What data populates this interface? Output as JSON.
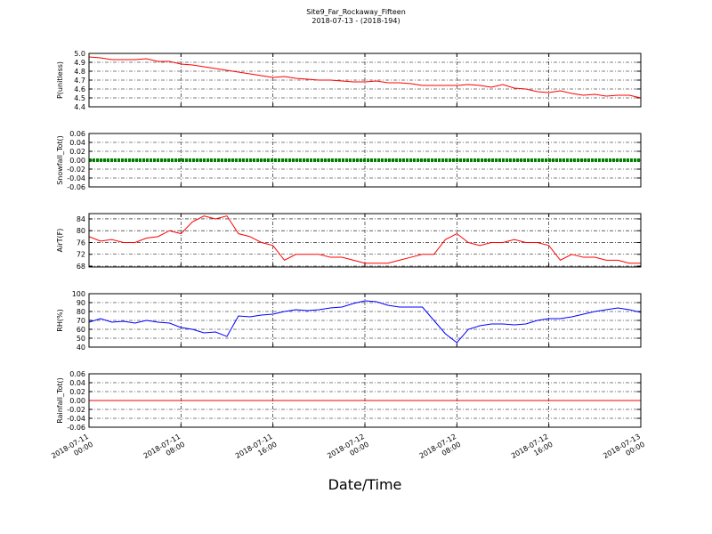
{
  "chart_data": [
    {
      "type": "line",
      "title": "Site9_Far_Rockaway_Fifteen",
      "subtitle": "2018-07-13 - (2018-194)",
      "ylabel": "P(unitless)",
      "x": [
        "2018-07-11 00:00",
        "2018-07-11 01:00",
        "2018-07-11 02:00",
        "2018-07-11 03:00",
        "2018-07-11 04:00",
        "2018-07-11 05:00",
        "2018-07-11 06:00",
        "2018-07-11 07:00",
        "2018-07-11 08:00",
        "2018-07-11 09:00",
        "2018-07-11 10:00",
        "2018-07-11 11:00",
        "2018-07-11 12:00",
        "2018-07-11 13:00",
        "2018-07-11 14:00",
        "2018-07-11 15:00",
        "2018-07-11 16:00",
        "2018-07-11 17:00",
        "2018-07-11 18:00",
        "2018-07-11 19:00",
        "2018-07-11 20:00",
        "2018-07-11 21:00",
        "2018-07-11 22:00",
        "2018-07-11 23:00",
        "2018-07-12 00:00",
        "2018-07-12 01:00",
        "2018-07-12 02:00",
        "2018-07-12 03:00",
        "2018-07-12 04:00",
        "2018-07-12 05:00",
        "2018-07-12 06:00",
        "2018-07-12 07:00",
        "2018-07-12 08:00",
        "2018-07-12 09:00",
        "2018-07-12 10:00",
        "2018-07-12 11:00",
        "2018-07-12 12:00",
        "2018-07-12 13:00",
        "2018-07-12 14:00",
        "2018-07-12 15:00",
        "2018-07-12 16:00",
        "2018-07-12 17:00",
        "2018-07-12 18:00",
        "2018-07-12 19:00",
        "2018-07-12 20:00",
        "2018-07-12 21:00",
        "2018-07-12 22:00",
        "2018-07-12 23:00",
        "2018-07-13 00:00"
      ],
      "xlim": [
        "2018-07-11 00:00",
        "2018-07-13 00:00"
      ],
      "ylim": [
        4.4,
        5.0
      ],
      "yticks": [
        4.4,
        4.5,
        4.6,
        4.7,
        4.8,
        4.9,
        {
          "value": 5,
          "label": "5.0"
        }
      ],
      "grid": true,
      "series": [
        {
          "color": "#ff0000",
          "values": [
            4.96,
            4.95,
            4.93,
            4.93,
            4.93,
            4.94,
            4.91,
            4.91,
            4.88,
            4.87,
            4.85,
            4.83,
            4.81,
            4.79,
            4.77,
            4.75,
            4.73,
            4.74,
            4.72,
            4.71,
            4.7,
            4.7,
            4.69,
            4.68,
            4.68,
            4.69,
            4.67,
            4.67,
            4.66,
            4.64,
            4.64,
            4.64,
            4.64,
            4.65,
            4.64,
            4.62,
            4.65,
            4.61,
            4.6,
            4.57,
            4.56,
            4.58,
            4.55,
            4.53,
            4.54,
            4.52,
            4.53,
            4.53,
            4.5
          ]
        }
      ]
    },
    {
      "type": "line",
      "ylabel": "Snowfall_Tot()",
      "ylim": [
        -0.06,
        0.06
      ],
      "yticks": [
        -0.06,
        -0.04,
        -0.02,
        {
          "value": 0,
          "label": "0.00"
        },
        0.02,
        0.04,
        0.06
      ],
      "grid": true,
      "series": [
        {
          "color": "#008000",
          "values": [
            0,
            0,
            0,
            0,
            0,
            0,
            0,
            0,
            0,
            0,
            0,
            0,
            0,
            0,
            0,
            0,
            0,
            0,
            0,
            0,
            0,
            0,
            0,
            0,
            0,
            0,
            0,
            0,
            0,
            0,
            0,
            0,
            0,
            0,
            0,
            0,
            0,
            0,
            0,
            0,
            0,
            0,
            0,
            0,
            0,
            0,
            0,
            0,
            0
          ]
        }
      ]
    },
    {
      "type": "line",
      "ylabel": "AirT(F)",
      "ylim": [
        67.7,
        85.8
      ],
      "yticks": [
        68,
        72,
        76,
        80,
        84
      ],
      "grid": true,
      "series": [
        {
          "color": "#ff0000",
          "values": [
            78,
            76.5,
            77,
            76,
            76,
            77.5,
            78,
            80,
            79,
            83,
            85,
            84,
            85,
            79,
            78,
            76,
            75,
            70,
            72,
            72,
            72,
            71,
            71,
            70,
            69,
            69,
            69,
            70,
            71,
            72,
            72,
            77,
            79,
            76,
            75,
            76,
            76,
            77,
            76,
            76,
            75,
            70,
            72,
            71,
            71,
            70,
            70,
            69,
            69
          ]
        }
      ]
    },
    {
      "type": "line",
      "ylabel": "RH(%)",
      "ylim": [
        40,
        100
      ],
      "yticks": [
        40,
        50,
        60,
        70,
        80,
        90,
        100
      ],
      "grid": true,
      "series": [
        {
          "color": "#0000ff",
          "values": [
            68,
            72,
            68,
            69,
            67,
            70,
            68,
            67,
            62,
            60,
            56,
            57,
            52,
            75,
            74,
            76,
            77,
            80,
            82,
            81,
            82,
            84,
            85,
            89,
            92,
            91,
            87,
            85,
            85,
            85,
            70,
            55,
            45,
            60,
            64,
            66,
            66,
            65,
            66,
            70,
            72,
            72,
            74,
            77,
            80,
            82,
            84,
            82,
            79
          ]
        }
      ]
    },
    {
      "type": "line",
      "ylabel": "Rainfall_Tot()",
      "xlabel": "Date/Time",
      "ylim": [
        -0.06,
        0.06
      ],
      "yticks": [
        -0.06,
        -0.04,
        -0.02,
        {
          "value": 0,
          "label": "0.00"
        },
        0.02,
        0.04,
        0.06
      ],
      "grid": true,
      "xticks": [
        "2018-07-11 00:00",
        "2018-07-11 08:00",
        "2018-07-11 16:00",
        "2018-07-12 00:00",
        "2018-07-12 08:00",
        "2018-07-12 16:00",
        "2018-07-13 00:00"
      ],
      "series": [
        {
          "color": "#ff0000",
          "values": [
            0,
            0,
            0,
            0,
            0,
            0,
            0,
            0,
            0,
            0,
            0,
            0,
            0,
            0,
            0,
            0,
            0,
            0,
            0,
            0,
            0,
            0,
            0,
            0,
            0,
            0,
            0,
            0,
            0,
            0,
            0,
            0,
            0,
            0,
            0,
            0,
            0,
            0,
            0,
            0,
            0,
            0,
            0,
            0,
            0,
            0,
            0,
            0,
            0
          ]
        }
      ]
    }
  ]
}
